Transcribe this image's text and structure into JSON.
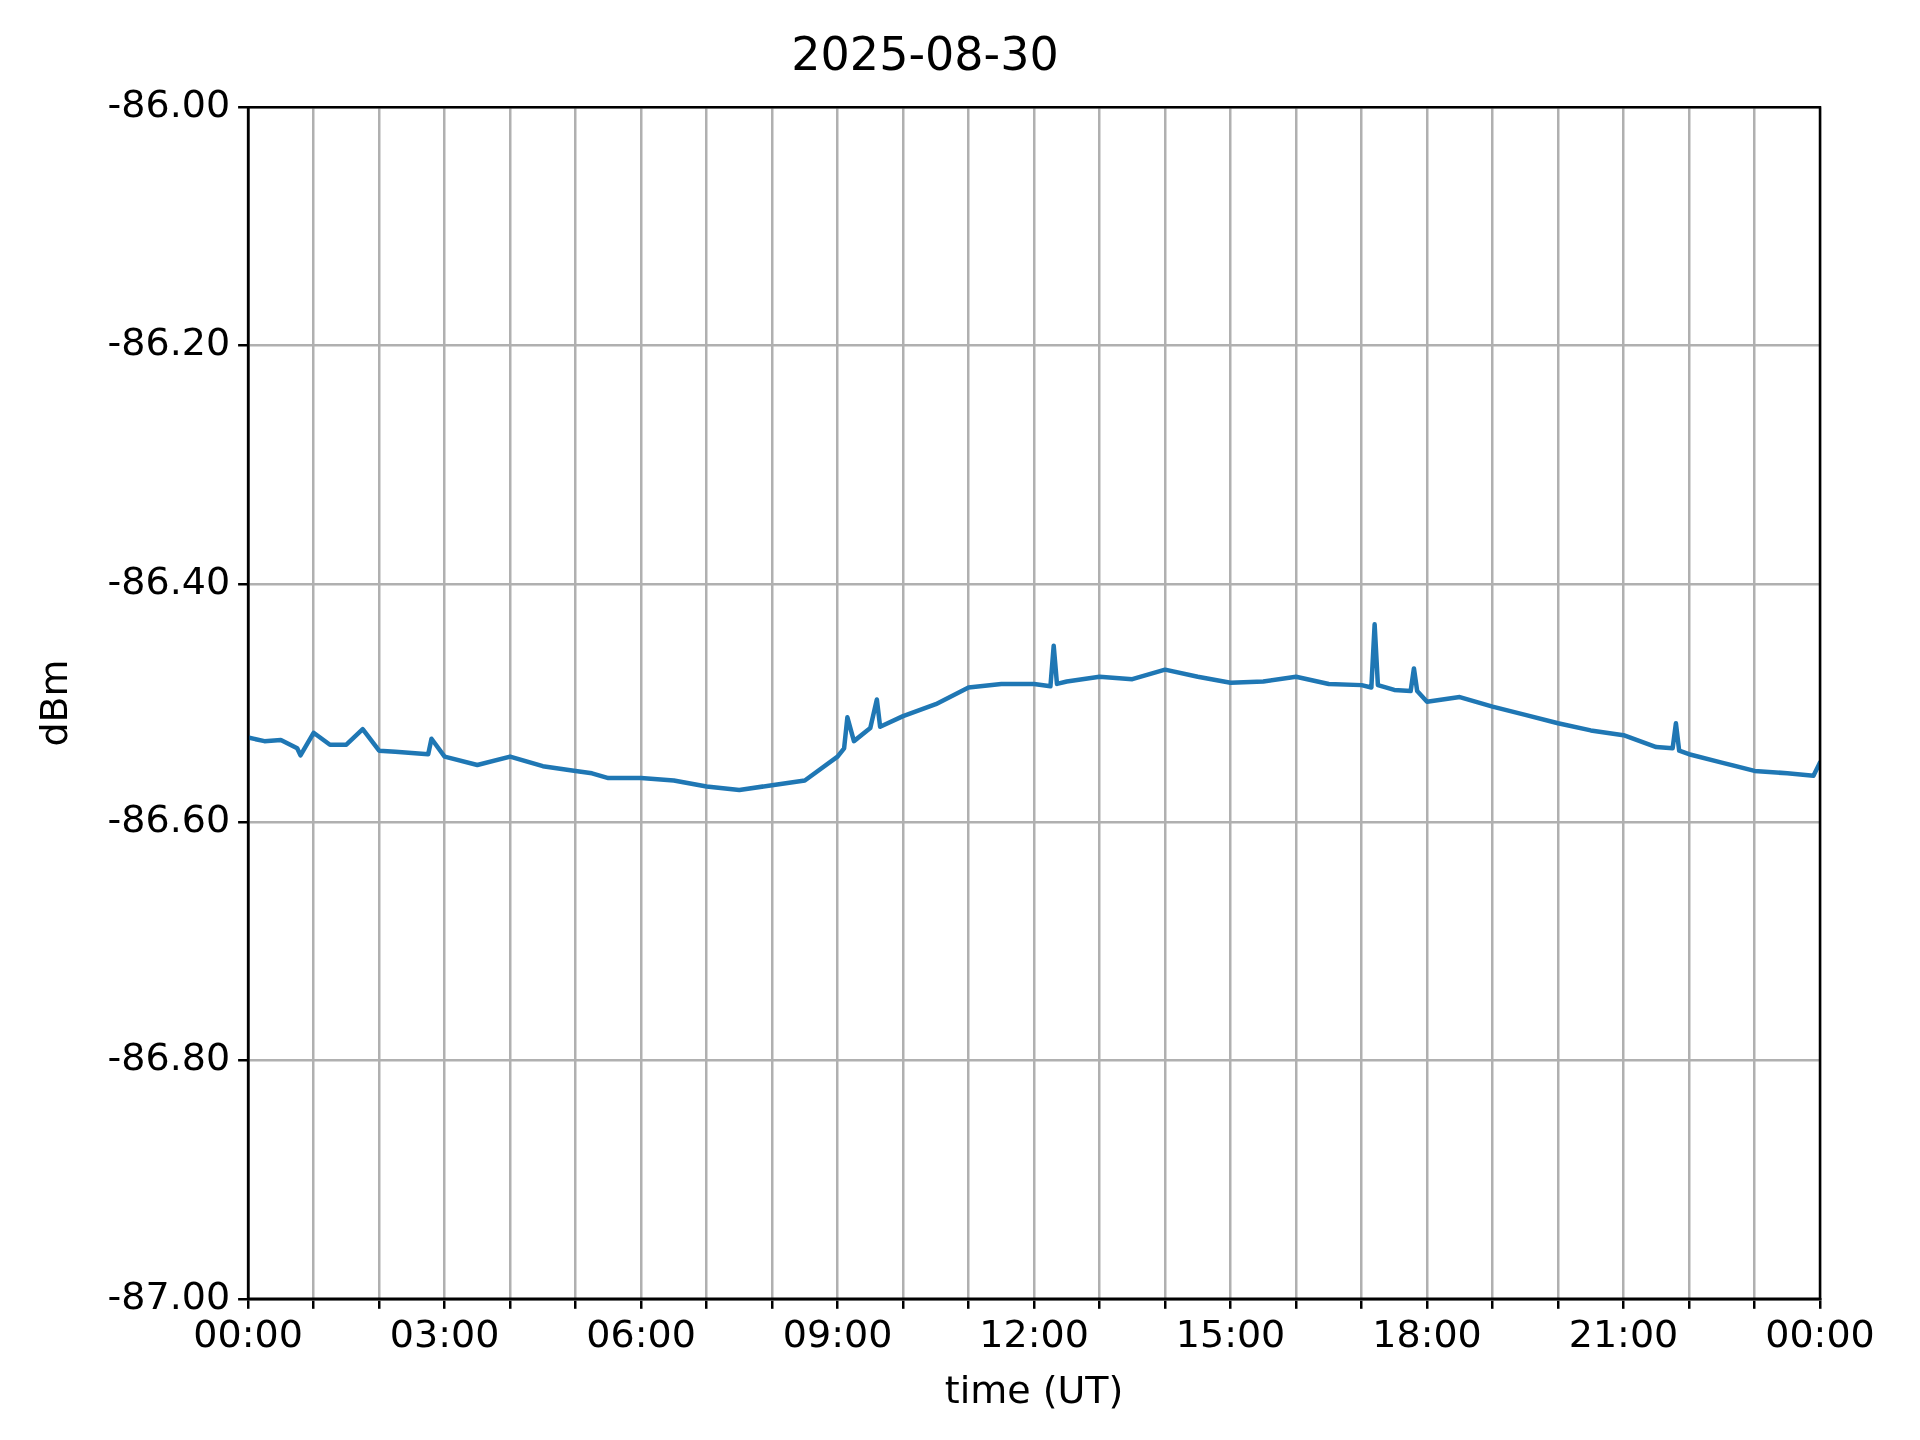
{
  "chart_data": {
    "type": "line",
    "title": "2025-08-30",
    "xlabel": "time (UT)",
    "ylabel": "dBm",
    "xlim": [
      0,
      24
    ],
    "xticks": [
      {
        "value": 0,
        "label": "00:00"
      },
      {
        "value": 1,
        "label": null
      },
      {
        "value": 2,
        "label": null
      },
      {
        "value": 3,
        "label": "03:00"
      },
      {
        "value": 4,
        "label": null
      },
      {
        "value": 5,
        "label": null
      },
      {
        "value": 6,
        "label": "06:00"
      },
      {
        "value": 7,
        "label": null
      },
      {
        "value": 8,
        "label": null
      },
      {
        "value": 9,
        "label": "09:00"
      },
      {
        "value": 10,
        "label": null
      },
      {
        "value": 11,
        "label": null
      },
      {
        "value": 12,
        "label": "12:00"
      },
      {
        "value": 13,
        "label": null
      },
      {
        "value": 14,
        "label": null
      },
      {
        "value": 15,
        "label": "15:00"
      },
      {
        "value": 16,
        "label": null
      },
      {
        "value": 17,
        "label": null
      },
      {
        "value": 18,
        "label": "18:00"
      },
      {
        "value": 19,
        "label": null
      },
      {
        "value": 20,
        "label": null
      },
      {
        "value": 21,
        "label": "21:00"
      },
      {
        "value": 22,
        "label": null
      },
      {
        "value": 23,
        "label": null
      },
      {
        "value": 24,
        "label": "00:00"
      }
    ],
    "ylim": [
      -87,
      -86
    ],
    "yticks": [
      {
        "value": -87,
        "label": "-87.00"
      },
      {
        "value": -86.8,
        "label": "-86.80"
      },
      {
        "value": -86.6,
        "label": "-86.60"
      },
      {
        "value": -86.4,
        "label": "-86.40"
      },
      {
        "value": -86.2,
        "label": "-86.20"
      },
      {
        "value": -86,
        "label": "-86.00"
      }
    ],
    "grid": true,
    "legend": false,
    "marker": "none",
    "line_style": "solid",
    "series": [
      {
        "color": "#1f77b4",
        "x": [
          0,
          0.25,
          0.5,
          0.75,
          0.8,
          1,
          1.25,
          1.5,
          1.75,
          2,
          2.25,
          2.5,
          2.75,
          2.8,
          3,
          3.5,
          4,
          4.5,
          5,
          5.25,
          5.5,
          6,
          6.5,
          7,
          7.5,
          8,
          8.5,
          9,
          9.1,
          9.15,
          9.25,
          9.5,
          9.6,
          9.65,
          10,
          10.5,
          11,
          11.5,
          12,
          12.25,
          12.3,
          12.35,
          12.5,
          13,
          13.5,
          14,
          14.5,
          15,
          15.5,
          16,
          16.5,
          17,
          17.15,
          17.2,
          17.25,
          17.5,
          17.75,
          17.8,
          17.85,
          18,
          18.5,
          19,
          19.5,
          20,
          20.5,
          21,
          21.5,
          21.75,
          21.8,
          21.85,
          22,
          22.5,
          23,
          23.5,
          23.9,
          24
        ],
        "values": [
          -86.529,
          -86.532,
          -86.531,
          -86.538,
          -86.544,
          -86.525,
          -86.535,
          -86.535,
          -86.522,
          -86.54,
          -86.541,
          -86.542,
          -86.543,
          -86.53,
          -86.545,
          -86.552,
          -86.545,
          -86.553,
          -86.557,
          -86.559,
          -86.563,
          -86.563,
          -86.565,
          -86.57,
          -86.573,
          -86.569,
          -86.565,
          -86.545,
          -86.538,
          -86.512,
          -86.532,
          -86.521,
          -86.497,
          -86.52,
          -86.511,
          -86.501,
          -86.487,
          -86.484,
          -86.484,
          -86.486,
          -86.452,
          -86.484,
          -86.482,
          -86.478,
          -86.48,
          -86.472,
          -86.478,
          -86.483,
          -86.482,
          -86.478,
          -86.484,
          -86.485,
          -86.487,
          -86.434,
          -86.485,
          -86.489,
          -86.49,
          -86.471,
          -86.49,
          -86.499,
          -86.495,
          -86.503,
          -86.51,
          -86.517,
          -86.523,
          -86.527,
          -86.537,
          -86.538,
          -86.517,
          -86.54,
          -86.543,
          -86.55,
          -86.557,
          -86.559,
          -86.561,
          -86.55
        ]
      }
    ]
  }
}
